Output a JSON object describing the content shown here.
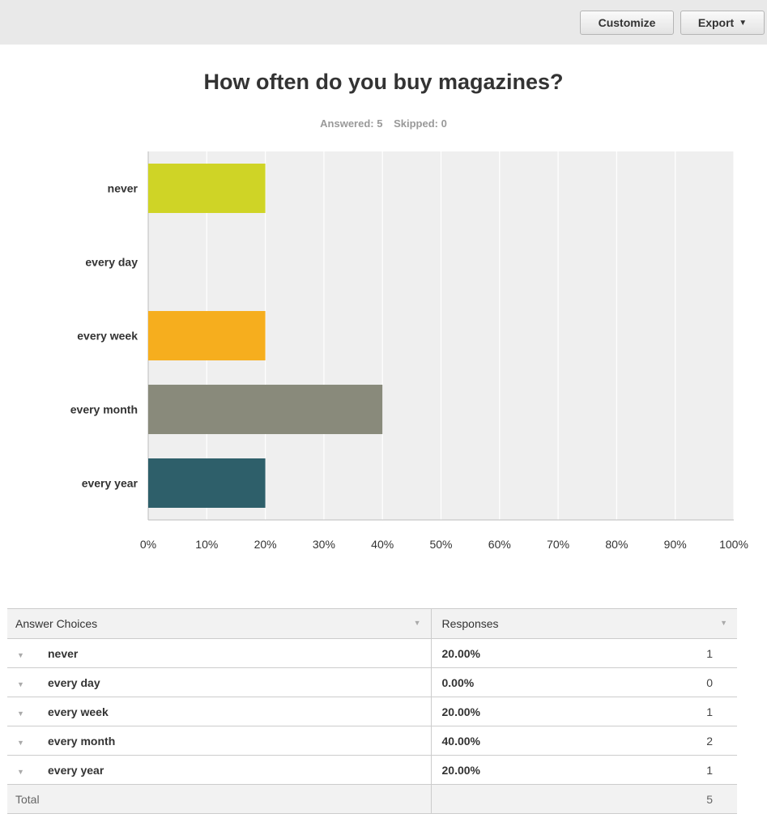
{
  "toolbar": {
    "customize_label": "Customize",
    "export_label": "Export",
    "export_caret_icon": "caret-down-icon"
  },
  "question": {
    "title": "How often do you buy magazines?",
    "answered": "Answered: 5",
    "skipped": "Skipped: 0"
  },
  "chart_data": {
    "type": "bar",
    "orientation": "horizontal",
    "title": "How often do you buy magazines?",
    "categories": [
      "never",
      "every day",
      "every week",
      "every month",
      "every year"
    ],
    "values": [
      20,
      0,
      20,
      40,
      20
    ],
    "colors": [
      "#cfd426",
      "#2aa6c9",
      "#f6ae1e",
      "#898a7b",
      "#2e5f6a"
    ],
    "xlim": [
      0,
      100
    ],
    "xticks": [
      "0%",
      "10%",
      "20%",
      "30%",
      "40%",
      "50%",
      "60%",
      "70%",
      "80%",
      "90%",
      "100%"
    ],
    "grid": true,
    "background": "#efefef"
  },
  "table": {
    "headers": {
      "choices": "Answer Choices",
      "responses": "Responses"
    },
    "rows": [
      {
        "label": "never",
        "percent": "20.00%",
        "count": "1"
      },
      {
        "label": "every day",
        "percent": "0.00%",
        "count": "0"
      },
      {
        "label": "every week",
        "percent": "20.00%",
        "count": "1"
      },
      {
        "label": "every month",
        "percent": "40.00%",
        "count": "2"
      },
      {
        "label": "every year",
        "percent": "20.00%",
        "count": "1"
      }
    ],
    "total": {
      "label": "Total",
      "count": "5"
    }
  }
}
